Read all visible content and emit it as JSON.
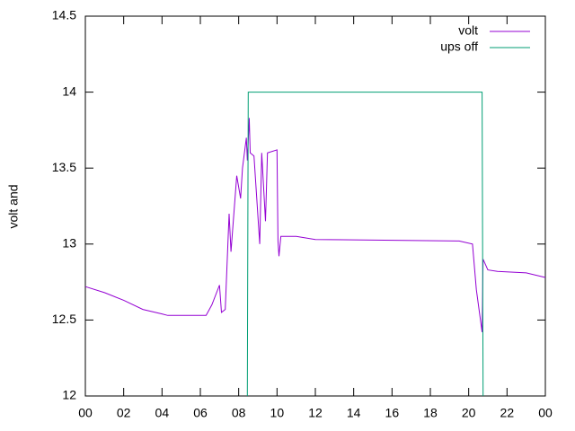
{
  "chart_data": {
    "type": "line",
    "ylabel": "volt and",
    "xlim": [
      0,
      24
    ],
    "xticks": [
      {
        "value": 0,
        "label": "00"
      },
      {
        "value": 2,
        "label": "02"
      },
      {
        "value": 4,
        "label": "04"
      },
      {
        "value": 6,
        "label": "06"
      },
      {
        "value": 8,
        "label": "08"
      },
      {
        "value": 10,
        "label": "10"
      },
      12,
      14,
      16,
      18,
      20,
      22,
      {
        "value": 24,
        "label": "00"
      }
    ],
    "ylim": [
      12,
      14.5
    ],
    "yticks": [
      12,
      12.5,
      13,
      13.5,
      14,
      14.5
    ],
    "legend": "top-right",
    "series": [
      {
        "name": "volt",
        "color": "#9400d3",
        "x": [
          0,
          1,
          2,
          3,
          4,
          4.3,
          6.3,
          6.6,
          7.0,
          7.1,
          7.3,
          7.5,
          7.6,
          7.9,
          8.1,
          8.2,
          8.4,
          8.45,
          8.55,
          8.6,
          8.8,
          9.1,
          9.2,
          9.4,
          9.5,
          10.0,
          10.05,
          10.1,
          10.2,
          11,
          12,
          19.5,
          20.2,
          20.4,
          20.7,
          20.75,
          21,
          21.5,
          23,
          24
        ],
        "values": [
          12.72,
          12.68,
          12.63,
          12.57,
          12.54,
          12.53,
          12.53,
          12.6,
          12.73,
          12.55,
          12.57,
          13.2,
          12.95,
          13.45,
          13.3,
          13.5,
          13.7,
          13.55,
          13.83,
          13.6,
          13.58,
          13.0,
          13.6,
          13.15,
          13.6,
          13.62,
          13.02,
          12.92,
          13.05,
          13.05,
          13.03,
          13.02,
          13.0,
          12.7,
          12.42,
          12.9,
          12.83,
          12.82,
          12.81,
          12.78
        ]
      },
      {
        "name": "ups off",
        "color": "#009e73",
        "x": [
          8.45,
          8.5,
          20.7,
          20.75
        ],
        "values": [
          12,
          14,
          14,
          12
        ]
      }
    ]
  }
}
